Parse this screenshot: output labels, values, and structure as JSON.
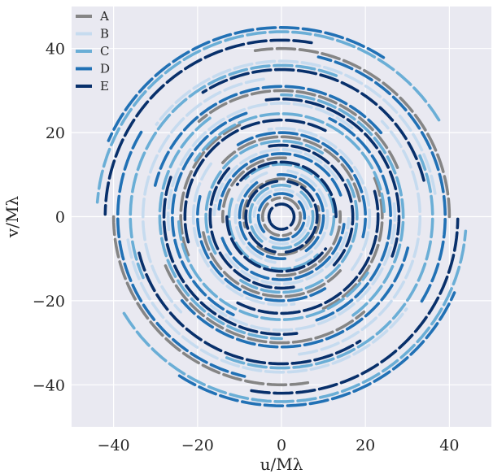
{
  "chart_data": {
    "type": "scatter",
    "title": "",
    "xlabel": "u/Mλ",
    "ylabel": "v/Mλ",
    "xlim": [
      -50,
      50
    ],
    "ylim": [
      -50,
      50
    ],
    "xticks": [
      -40,
      -20,
      0,
      20,
      40
    ],
    "yticks": [
      -40,
      -20,
      0,
      20,
      40
    ],
    "xtick_labels": [
      "−40",
      "−20",
      "0",
      "20",
      "40"
    ],
    "ytick_labels": [
      "−40",
      "−20",
      "0",
      "20",
      "40"
    ],
    "grid": true,
    "background": "#e9e9f1",
    "legend_position": "top-left",
    "series": [
      {
        "name": "A",
        "color": "#858585",
        "tracks": [
          {
            "radius": 40,
            "phase": 0.0,
            "span": 0.55
          },
          {
            "radius": 30,
            "phase": 0.4,
            "span": 0.6
          },
          {
            "radius": 24,
            "phase": 2.0,
            "span": 0.5
          },
          {
            "radius": 19,
            "phase": 0.2,
            "span": 0.7
          },
          {
            "radius": 14,
            "phase": 1.5,
            "span": 0.55
          },
          {
            "radius": 9,
            "phase": 0.9,
            "span": 0.8
          },
          {
            "radius": 4.5,
            "phase": 2.4,
            "span": 0.9
          }
        ]
      },
      {
        "name": "B",
        "color": "#c6dbef",
        "tracks": [
          {
            "radius": 37,
            "phase": 0.15,
            "span": 0.75
          },
          {
            "radius": 33,
            "phase": 1.7,
            "span": 0.7
          },
          {
            "radius": 27,
            "phase": 0.9,
            "span": 0.75
          },
          {
            "radius": 21,
            "phase": 2.5,
            "span": 0.75
          },
          {
            "radius": 16,
            "phase": 0.6,
            "span": 0.8
          },
          {
            "radius": 11,
            "phase": 1.9,
            "span": 0.85
          },
          {
            "radius": 6.5,
            "phase": 0.3,
            "span": 0.9
          }
        ]
      },
      {
        "name": "C",
        "color": "#6aaed6",
        "tracks": [
          {
            "radius": 44,
            "phase": 0.55,
            "span": 0.8
          },
          {
            "radius": 36,
            "phase": 1.2,
            "span": 0.75
          },
          {
            "radius": 29,
            "phase": 2.2,
            "span": 0.8
          },
          {
            "radius": 24.5,
            "phase": 0.05,
            "span": 0.8
          },
          {
            "radius": 18,
            "phase": 1.0,
            "span": 0.85
          },
          {
            "radius": 12.5,
            "phase": 2.8,
            "span": 0.85
          },
          {
            "radius": 7.5,
            "phase": 1.3,
            "span": 0.9
          }
        ]
      },
      {
        "name": "D",
        "color": "#2171b5",
        "tracks": [
          {
            "radius": 45,
            "phase": 1.0,
            "span": 0.55
          },
          {
            "radius": 39,
            "phase": 2.6,
            "span": 0.6
          },
          {
            "radius": 31,
            "phase": 0.7,
            "span": 0.7
          },
          {
            "radius": 26,
            "phase": 1.9,
            "span": 0.75
          },
          {
            "radius": 20,
            "phase": 2.9,
            "span": 0.75
          },
          {
            "radius": 15,
            "phase": 0.35,
            "span": 0.85
          },
          {
            "radius": 10,
            "phase": 2.2,
            "span": 0.85
          },
          {
            "radius": 5.5,
            "phase": 1.1,
            "span": 0.9
          }
        ]
      },
      {
        "name": "E",
        "color": "#08306b",
        "tracks": [
          {
            "radius": 42,
            "phase": 1.4,
            "span": 0.55
          },
          {
            "radius": 35,
            "phase": 0.25,
            "span": 0.6
          },
          {
            "radius": 28,
            "phase": 2.8,
            "span": 0.65
          },
          {
            "radius": 23,
            "phase": 1.1,
            "span": 0.75
          },
          {
            "radius": 17,
            "phase": 2.4,
            "span": 0.8
          },
          {
            "radius": 13,
            "phase": 0.0,
            "span": 0.8
          },
          {
            "radius": 8.5,
            "phase": 1.7,
            "span": 0.9
          },
          {
            "radius": 3,
            "phase": 0.6,
            "span": 0.95
          }
        ]
      }
    ]
  }
}
